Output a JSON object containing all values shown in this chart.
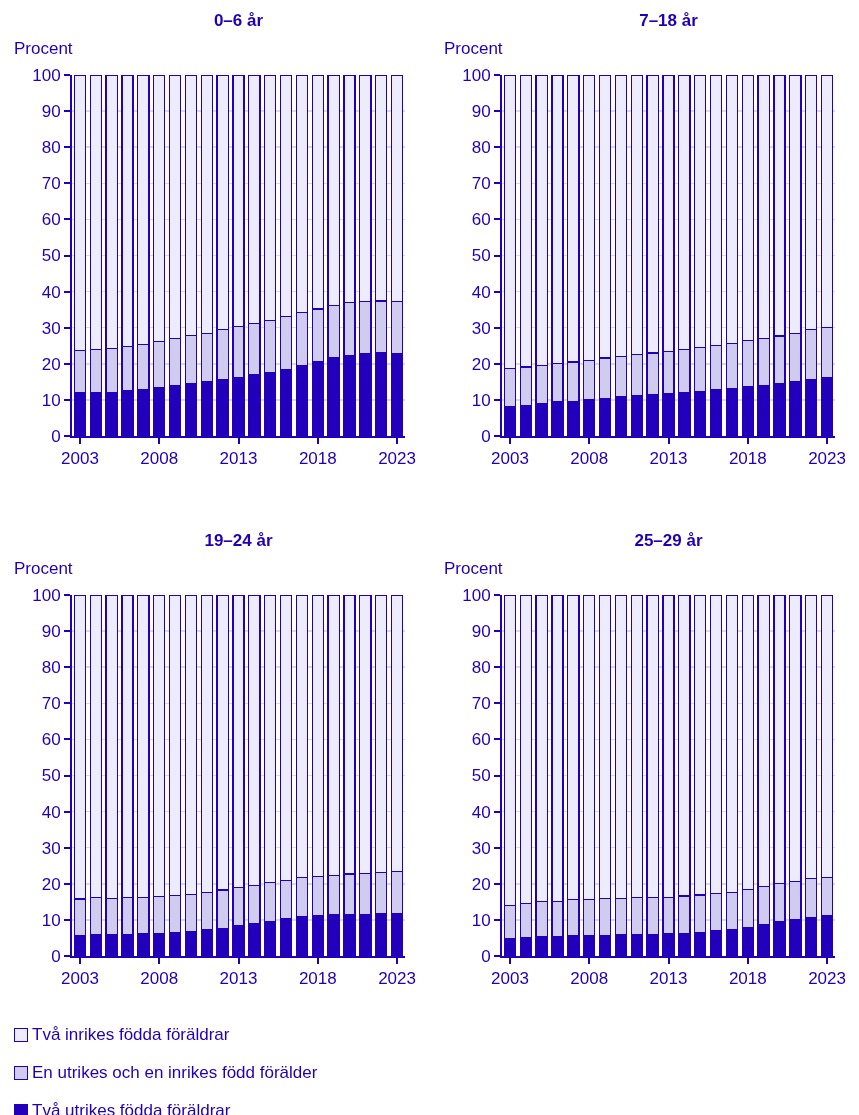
{
  "chart_data": [
    {
      "type": "bar",
      "stacked": true,
      "title": "0–6 år",
      "ylabel": "Procent",
      "x": [
        2003,
        2004,
        2005,
        2006,
        2007,
        2008,
        2009,
        2010,
        2011,
        2012,
        2013,
        2014,
        2015,
        2016,
        2017,
        2018,
        2019,
        2020,
        2021,
        2022,
        2023
      ],
      "xlim": [
        2002.5,
        2023.5
      ],
      "xticks": [
        2003,
        2008,
        2013,
        2018,
        2023
      ],
      "ylim": [
        0,
        100
      ],
      "yticks": [
        0,
        10,
        20,
        30,
        40,
        50,
        60,
        70,
        80,
        90,
        100
      ],
      "grid": "y",
      "series": [
        {
          "color": "#2200bb",
          "values": [
            12.0,
            12.0,
            12.1,
            12.5,
            12.8,
            13.3,
            13.9,
            14.5,
            15.0,
            15.6,
            16.1,
            16.9,
            17.7,
            18.5,
            19.6,
            20.6,
            21.7,
            22.4,
            22.8,
            23.0,
            22.8
          ]
        },
        {
          "color": "#d0ccf0",
          "values": [
            11.6,
            11.9,
            12.2,
            12.4,
            12.6,
            12.8,
            13.1,
            13.3,
            13.5,
            13.9,
            14.3,
            14.2,
            14.4,
            14.5,
            14.7,
            14.6,
            14.4,
            14.5,
            14.4,
            14.4,
            14.4
          ]
        },
        {
          "color": "#ececfc",
          "values": [
            76.4,
            76.1,
            75.7,
            75.1,
            74.6,
            73.9,
            73.0,
            72.2,
            71.5,
            70.5,
            69.6,
            68.9,
            67.9,
            67.0,
            65.7,
            64.8,
            63.9,
            63.1,
            62.8,
            62.6,
            62.8
          ]
        }
      ]
    },
    {
      "type": "bar",
      "stacked": true,
      "title": "7–18 år",
      "ylabel": "Procent",
      "x": [
        2003,
        2004,
        2005,
        2006,
        2007,
        2008,
        2009,
        2010,
        2011,
        2012,
        2013,
        2014,
        2015,
        2016,
        2017,
        2018,
        2019,
        2020,
        2021,
        2022,
        2023
      ],
      "xlim": [
        2002.5,
        2023.5
      ],
      "xticks": [
        2003,
        2008,
        2013,
        2018,
        2023
      ],
      "ylim": [
        0,
        100
      ],
      "yticks": [
        0,
        10,
        20,
        30,
        40,
        50,
        60,
        70,
        80,
        90,
        100
      ],
      "grid": "y",
      "series": [
        {
          "color": "#2200bb",
          "values": [
            8.2,
            8.5,
            8.9,
            9.4,
            9.6,
            10.1,
            10.5,
            10.9,
            11.3,
            11.6,
            11.8,
            12.1,
            12.4,
            12.8,
            13.2,
            13.6,
            14.0,
            14.6,
            15.1,
            15.7,
            16.3
          ]
        },
        {
          "color": "#d0ccf0",
          "values": [
            10.5,
            10.6,
            10.6,
            10.6,
            10.9,
            10.8,
            11.1,
            11.1,
            11.3,
            11.4,
            11.6,
            11.9,
            12.2,
            12.3,
            12.5,
            12.8,
            13.1,
            13.1,
            13.3,
            13.7,
            13.8
          ]
        },
        {
          "color": "#ececfc",
          "values": [
            81.3,
            80.9,
            80.5,
            80.0,
            79.5,
            79.1,
            78.4,
            78.0,
            77.4,
            77.0,
            76.6,
            76.0,
            75.4,
            74.9,
            74.3,
            73.6,
            72.9,
            72.3,
            71.6,
            70.6,
            69.9
          ]
        }
      ]
    },
    {
      "type": "bar",
      "stacked": true,
      "title": "19–24 år",
      "ylabel": "Procent",
      "x": [
        2003,
        2004,
        2005,
        2006,
        2007,
        2008,
        2009,
        2010,
        2011,
        2012,
        2013,
        2014,
        2015,
        2016,
        2017,
        2018,
        2019,
        2020,
        2021,
        2022,
        2023
      ],
      "xlim": [
        2002.5,
        2023.5
      ],
      "xticks": [
        2003,
        2008,
        2013,
        2018,
        2023
      ],
      "ylim": [
        0,
        100
      ],
      "yticks": [
        0,
        10,
        20,
        30,
        40,
        50,
        60,
        70,
        80,
        90,
        100
      ],
      "grid": "y",
      "series": [
        {
          "color": "#2200bb",
          "values": [
            5.7,
            5.8,
            5.8,
            5.9,
            6.1,
            6.2,
            6.5,
            6.8,
            7.2,
            7.7,
            8.4,
            8.9,
            9.6,
            10.3,
            10.9,
            11.2,
            11.5,
            11.6,
            11.6,
            11.7,
            11.8
          ]
        },
        {
          "color": "#d0ccf0",
          "values": [
            10.1,
            10.3,
            10.2,
            10.2,
            10.2,
            10.3,
            10.3,
            10.3,
            10.4,
            10.6,
            10.5,
            10.6,
            10.7,
            10.7,
            10.8,
            10.9,
            10.9,
            11.1,
            11.3,
            11.5,
            11.7
          ]
        },
        {
          "color": "#ececfc",
          "values": [
            84.2,
            83.9,
            84.0,
            83.9,
            83.7,
            83.5,
            83.2,
            82.9,
            82.4,
            81.7,
            81.1,
            80.5,
            79.7,
            79.0,
            78.3,
            77.9,
            77.6,
            77.3,
            77.1,
            76.8,
            76.5
          ]
        }
      ]
    },
    {
      "type": "bar",
      "stacked": true,
      "title": "25–29 år",
      "ylabel": "Procent",
      "x": [
        2003,
        2004,
        2005,
        2006,
        2007,
        2008,
        2009,
        2010,
        2011,
        2012,
        2013,
        2014,
        2015,
        2016,
        2017,
        2018,
        2019,
        2020,
        2021,
        2022,
        2023
      ],
      "xlim": [
        2002.5,
        2023.5
      ],
      "xticks": [
        2003,
        2008,
        2013,
        2018,
        2023
      ],
      "ylim": [
        0,
        100
      ],
      "yticks": [
        0,
        10,
        20,
        30,
        40,
        50,
        60,
        70,
        80,
        90,
        100
      ],
      "grid": "y",
      "legend": "bottom",
      "series": [
        {
          "name": "Två utrikes födda föräldrar",
          "color": "#2200bb",
          "values": [
            4.9,
            5.2,
            5.4,
            5.5,
            5.7,
            5.7,
            5.7,
            5.8,
            5.8,
            5.9,
            6.1,
            6.3,
            6.6,
            6.9,
            7.3,
            8.0,
            8.6,
            9.4,
            10.0,
            10.7,
            11.1
          ]
        },
        {
          "name": "En utrikes och en inrikes född förälder",
          "color": "#d0ccf0",
          "values": [
            9.2,
            9.4,
            9.6,
            9.7,
            9.9,
            10.0,
            10.2,
            10.2,
            10.3,
            10.2,
            10.2,
            10.3,
            10.3,
            10.4,
            10.3,
            10.5,
            10.7,
            10.6,
            10.7,
            10.8,
            10.7
          ]
        },
        {
          "name": "Två inrikes födda föräldrar",
          "color": "#ececfc",
          "values": [
            85.9,
            85.4,
            85.0,
            84.8,
            84.4,
            84.3,
            84.1,
            84.0,
            83.9,
            83.9,
            83.7,
            83.4,
            83.1,
            82.7,
            82.4,
            81.5,
            80.7,
            80.0,
            79.3,
            78.5,
            78.2
          ]
        }
      ]
    }
  ]
}
